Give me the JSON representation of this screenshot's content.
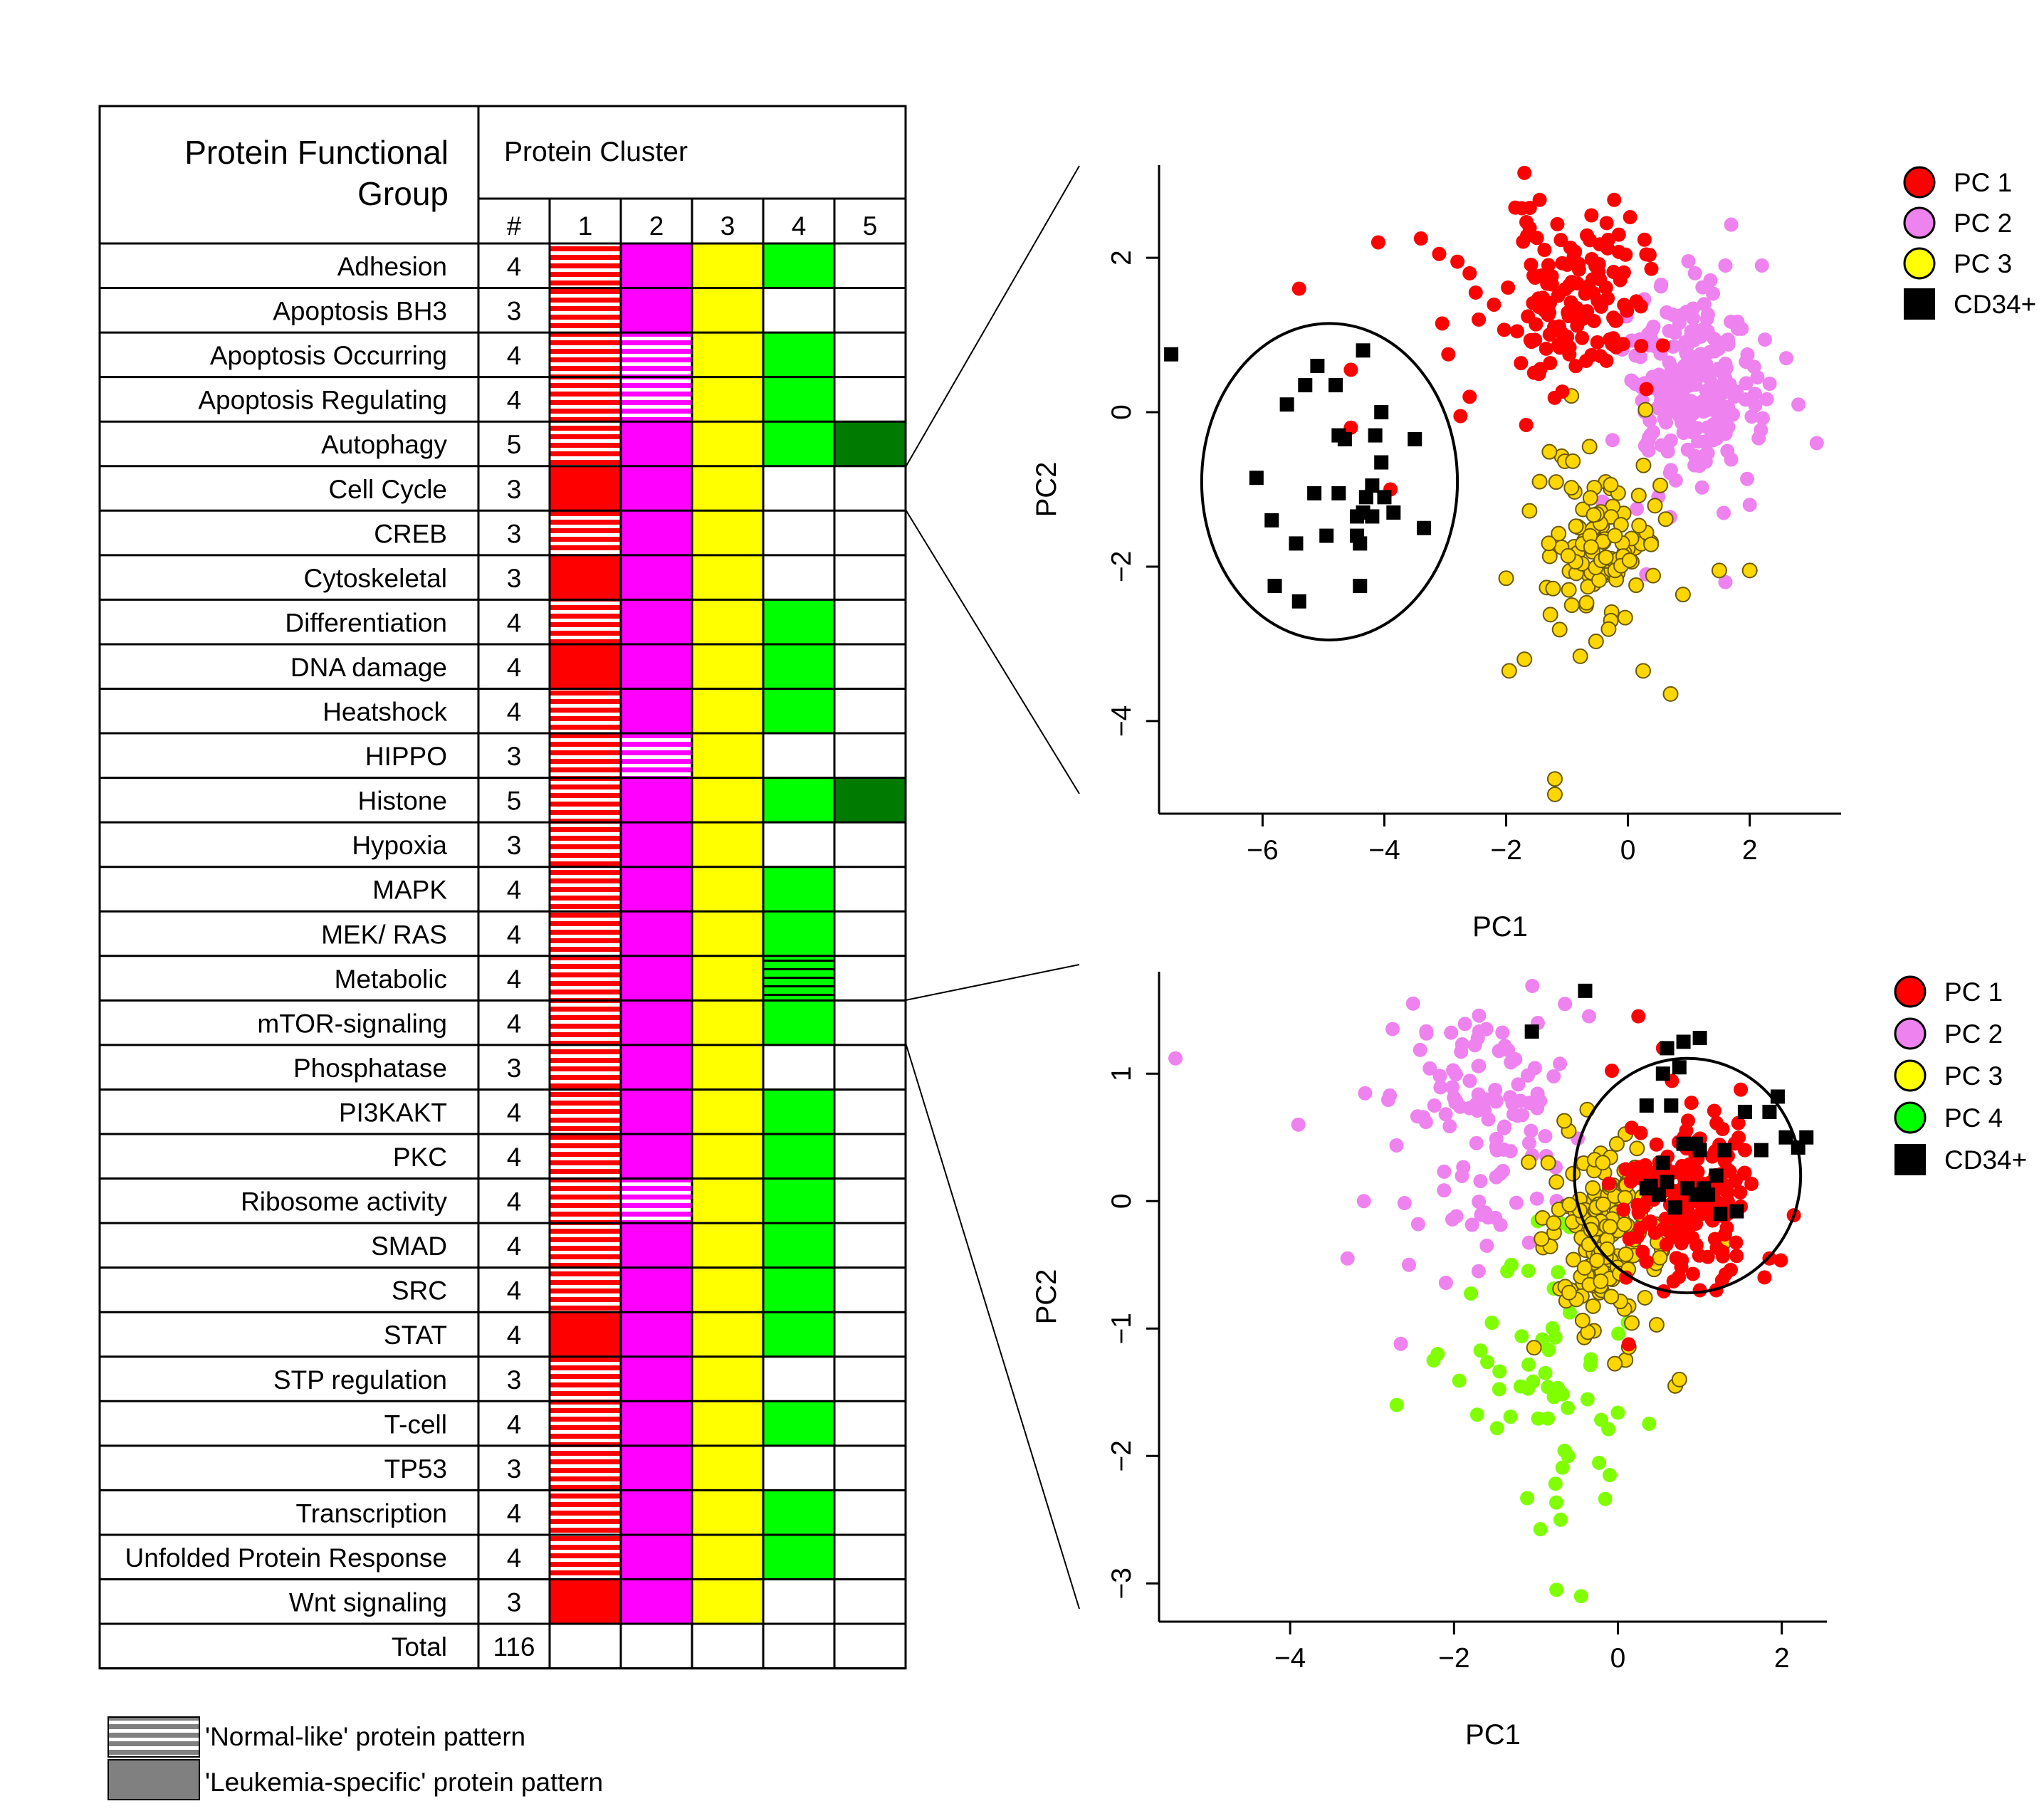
{
  "table": {
    "header_group": "Protein Functional Group",
    "header_group_line1": "Protein Functional",
    "header_group_line2": "Group",
    "header_cluster": "Protein Cluster",
    "col_count": "#",
    "col_clusters": [
      "1",
      "2",
      "3",
      "4",
      "5"
    ],
    "cluster_colors": [
      "#ff0000",
      "#ff00ff",
      "#ffff00",
      "#00ff00",
      "#007a00"
    ],
    "cell_code_legend": "0 = empty, 1 = solid leukemia-specific fill, 2 = 'normal-like' striped fill, 3 = dark-line hatch",
    "rows": [
      {
        "name": "Adhesion",
        "count": "4",
        "cells": [
          2,
          1,
          1,
          1,
          0
        ]
      },
      {
        "name": "Apoptosis BH3",
        "count": "3",
        "cells": [
          2,
          1,
          1,
          0,
          0
        ]
      },
      {
        "name": "Apoptosis Occurring",
        "count": "4",
        "cells": [
          2,
          2,
          1,
          1,
          0
        ]
      },
      {
        "name": "Apoptosis Regulating",
        "count": "4",
        "cells": [
          2,
          2,
          1,
          1,
          0
        ]
      },
      {
        "name": "Autophagy",
        "count": "5",
        "cells": [
          2,
          1,
          1,
          1,
          1
        ]
      },
      {
        "name": "Cell Cycle",
        "count": "3",
        "cells": [
          1,
          1,
          1,
          0,
          0
        ]
      },
      {
        "name": "CREB",
        "count": "3",
        "cells": [
          2,
          1,
          1,
          0,
          0
        ]
      },
      {
        "name": "Cytoskeletal",
        "count": "3",
        "cells": [
          1,
          1,
          1,
          0,
          0
        ]
      },
      {
        "name": "Differentiation",
        "count": "4",
        "cells": [
          2,
          1,
          1,
          1,
          0
        ]
      },
      {
        "name": "DNA damage",
        "count": "4",
        "cells": [
          1,
          1,
          1,
          1,
          0
        ]
      },
      {
        "name": "Heatshock",
        "count": "4",
        "cells": [
          2,
          1,
          1,
          1,
          0
        ]
      },
      {
        "name": "HIPPO",
        "count": "3",
        "cells": [
          2,
          2,
          1,
          0,
          0
        ]
      },
      {
        "name": "Histone",
        "count": "5",
        "cells": [
          2,
          1,
          1,
          1,
          1
        ]
      },
      {
        "name": "Hypoxia",
        "count": "3",
        "cells": [
          2,
          1,
          1,
          0,
          0
        ]
      },
      {
        "name": "MAPK",
        "count": "4",
        "cells": [
          2,
          1,
          1,
          1,
          0
        ]
      },
      {
        "name": "MEK/ RAS",
        "count": "4",
        "cells": [
          2,
          1,
          1,
          1,
          0
        ]
      },
      {
        "name": "Metabolic",
        "count": "4",
        "cells": [
          2,
          1,
          1,
          3,
          0
        ]
      },
      {
        "name": "mTOR-signaling",
        "count": "4",
        "cells": [
          2,
          1,
          1,
          1,
          0
        ]
      },
      {
        "name": "Phosphatase",
        "count": "3",
        "cells": [
          2,
          1,
          1,
          0,
          0
        ]
      },
      {
        "name": "PI3KAKT",
        "count": "4",
        "cells": [
          2,
          1,
          1,
          1,
          0
        ]
      },
      {
        "name": "PKC",
        "count": "4",
        "cells": [
          2,
          1,
          1,
          1,
          0
        ]
      },
      {
        "name": "Ribosome activity",
        "count": "4",
        "cells": [
          2,
          2,
          1,
          1,
          0
        ]
      },
      {
        "name": "SMAD",
        "count": "4",
        "cells": [
          2,
          1,
          1,
          1,
          0
        ]
      },
      {
        "name": "SRC",
        "count": "4",
        "cells": [
          2,
          1,
          1,
          1,
          0
        ]
      },
      {
        "name": "STAT",
        "count": "4",
        "cells": [
          1,
          1,
          1,
          1,
          0
        ]
      },
      {
        "name": "STP regulation",
        "count": "3",
        "cells": [
          2,
          1,
          1,
          0,
          0
        ]
      },
      {
        "name": "T-cell",
        "count": "4",
        "cells": [
          2,
          1,
          1,
          1,
          0
        ]
      },
      {
        "name": "TP53",
        "count": "3",
        "cells": [
          2,
          1,
          1,
          0,
          0
        ]
      },
      {
        "name": "Transcription",
        "count": "4",
        "cells": [
          2,
          1,
          1,
          1,
          0
        ]
      },
      {
        "name": "Unfolded Protein Response",
        "count": "4",
        "cells": [
          2,
          1,
          1,
          1,
          0
        ]
      },
      {
        "name": "Wnt signaling",
        "count": "3",
        "cells": [
          1,
          1,
          1,
          0,
          0
        ]
      }
    ],
    "total_label": "Total",
    "total_count": "116"
  },
  "pattern_legend": {
    "normal": "'Normal-like' protein pattern",
    "leukemia": "'Leukemia-specific' protein pattern"
  },
  "chart_data": [
    {
      "type": "scatter",
      "xlabel": "PC1",
      "ylabel": "PC2",
      "xlim": [
        -7.7,
        3.5
      ],
      "ylim": [
        -5.2,
        3.2
      ],
      "xticks": [
        -6,
        -4,
        -2,
        0,
        2
      ],
      "yticks": [
        -4,
        -2,
        0,
        2
      ],
      "grid": false,
      "legend_position": "top-right",
      "legend": [
        {
          "label": "PC 1",
          "color": "#ff0000",
          "marker": "circle"
        },
        {
          "label": "PC 2",
          "color": "#ee82ee",
          "marker": "circle"
        },
        {
          "label": "PC 3",
          "color": "#ffff00",
          "marker": "circle"
        },
        {
          "label": "CD34+",
          "color": "#000000",
          "marker": "square"
        }
      ],
      "ellipse": {
        "cx": -4.9,
        "cy": -0.9,
        "rx": 2.1,
        "ry": 2.05
      },
      "series": [
        {
          "name": "PC 1",
          "color": "#ff0000",
          "marker": "circle",
          "cloud": {
            "center": [
              -0.9,
              1.4
            ],
            "spread": [
              0.55,
              0.55
            ],
            "n": 130,
            "seed": 11
          },
          "points": [
            [
              -1.7,
              3.1
            ],
            [
              -1.45,
              2.75
            ],
            [
              -1.85,
              2.65
            ],
            [
              -0.6,
              2.55
            ],
            [
              -4.1,
              2.2
            ],
            [
              -3.4,
              2.25
            ],
            [
              -3.1,
              2.05
            ],
            [
              -2.8,
              1.95
            ],
            [
              -2.6,
              1.8
            ],
            [
              -2.5,
              1.55
            ],
            [
              -5.4,
              1.6
            ],
            [
              -3.05,
              1.15
            ],
            [
              -2.45,
              1.2
            ],
            [
              -2.95,
              0.75
            ],
            [
              -2.6,
              0.2
            ],
            [
              -2.75,
              -0.05
            ],
            [
              -4.55,
              0.55
            ],
            [
              -4.55,
              -0.2
            ],
            [
              -3.9,
              -1.0
            ],
            [
              -0.15,
              2.3
            ],
            [
              -0.35,
              2.45
            ]
          ]
        },
        {
          "name": "PC 2",
          "color": "#ee82ee",
          "marker": "circle",
          "cloud": {
            "center": [
              1.0,
              0.3
            ],
            "spread": [
              0.55,
              0.65
            ],
            "n": 220,
            "seed": 23
          },
          "points": [
            [
              3.1,
              -0.4
            ],
            [
              2.8,
              0.1
            ],
            [
              2.6,
              0.7
            ],
            [
              2.2,
              1.9
            ],
            [
              1.6,
              -2.2
            ],
            [
              0.3,
              -2.1
            ],
            [
              1.1,
              1.8
            ],
            [
              1.6,
              1.9
            ],
            [
              2.0,
              -1.2
            ]
          ]
        },
        {
          "name": "PC 3",
          "color": "#ffd700",
          "marker": "circle",
          "cloud": {
            "center": [
              -0.4,
              -1.65
            ],
            "spread": [
              0.45,
              0.6
            ],
            "n": 110,
            "seed": 37
          },
          "points": [
            [
              -2.0,
              -2.15
            ],
            [
              -1.7,
              -3.2
            ],
            [
              -1.95,
              -3.35
            ],
            [
              -1.2,
              -4.75
            ],
            [
              -1.2,
              -4.95
            ],
            [
              0.7,
              -3.65
            ],
            [
              0.25,
              -3.35
            ],
            [
              1.5,
              -2.05
            ],
            [
              2.0,
              -2.05
            ],
            [
              -1.45,
              -0.9
            ]
          ]
        },
        {
          "name": "CD34+",
          "color": "#000000",
          "marker": "square",
          "points": [
            [
              -7.5,
              0.75
            ],
            [
              -5.1,
              0.6
            ],
            [
              -5.3,
              0.35
            ],
            [
              -5.6,
              0.1
            ],
            [
              -4.8,
              0.35
            ],
            [
              -4.35,
              0.8
            ],
            [
              -4.05,
              0.0
            ],
            [
              -4.75,
              -0.3
            ],
            [
              -4.65,
              -0.35
            ],
            [
              -4.15,
              -0.3
            ],
            [
              -3.5,
              -0.35
            ],
            [
              -6.1,
              -0.85
            ],
            [
              -5.15,
              -1.05
            ],
            [
              -4.75,
              -1.05
            ],
            [
              -4.3,
              -1.1
            ],
            [
              -4.05,
              -0.65
            ],
            [
              -4.2,
              -0.95
            ],
            [
              -4.0,
              -1.1
            ],
            [
              -5.85,
              -1.4
            ],
            [
              -4.45,
              -1.35
            ],
            [
              -4.35,
              -1.3
            ],
            [
              -4.2,
              -1.35
            ],
            [
              -3.85,
              -1.3
            ],
            [
              -4.95,
              -1.6
            ],
            [
              -4.45,
              -1.6
            ],
            [
              -4.4,
              -1.7
            ],
            [
              -5.45,
              -1.7
            ],
            [
              -3.35,
              -1.5
            ],
            [
              -5.8,
              -2.25
            ],
            [
              -5.4,
              -2.45
            ],
            [
              -4.4,
              -2.25
            ]
          ]
        }
      ]
    },
    {
      "type": "scatter",
      "xlabel": "PC1",
      "ylabel": "PC2",
      "xlim": [
        -5.6,
        2.55
      ],
      "ylim": [
        -3.3,
        1.8
      ],
      "xticks": [
        -4,
        -2,
        0,
        2
      ],
      "yticks": [
        -3,
        -2,
        -1,
        0,
        1
      ],
      "grid": false,
      "legend_position": "top-right",
      "legend": [
        {
          "label": "PC 1",
          "color": "#ff0000",
          "marker": "circle"
        },
        {
          "label": "PC 2",
          "color": "#ee82ee",
          "marker": "circle"
        },
        {
          "label": "PC 3",
          "color": "#ffff00",
          "marker": "circle"
        },
        {
          "label": "PC 4",
          "color": "#00ff00",
          "marker": "circle"
        },
        {
          "label": "CD34+",
          "color": "#000000",
          "marker": "square"
        }
      ],
      "ellipse": {
        "cx": 0.85,
        "cy": 0.2,
        "rx": 1.38,
        "ry": 0.92
      },
      "series": [
        {
          "name": "PC 1",
          "color": "#ff0000",
          "marker": "circle",
          "cloud": {
            "center": [
              0.9,
              0.05
            ],
            "spread": [
              0.38,
              0.35
            ],
            "n": 180,
            "seed": 41
          },
          "points": [
            [
              0.25,
              1.45
            ],
            [
              0.55,
              1.2
            ],
            [
              1.55,
              0.4
            ],
            [
              1.85,
              -0.45
            ],
            [
              1.0,
              -0.7
            ],
            [
              1.2,
              -0.7
            ],
            [
              0.1,
              -0.6
            ]
          ]
        },
        {
          "name": "PC 2",
          "color": "#ee82ee",
          "marker": "circle",
          "cloud": {
            "center": [
              -1.6,
              0.65
            ],
            "spread": [
              0.55,
              0.45
            ],
            "n": 110,
            "seed": 53
          },
          "points": [
            [
              -5.4,
              1.12
            ],
            [
              -3.9,
              0.6
            ],
            [
              -3.3,
              -0.45
            ],
            [
              -3.1,
              0.0
            ],
            [
              -2.55,
              -0.5
            ],
            [
              -2.65,
              -1.12
            ],
            [
              -2.5,
              1.55
            ],
            [
              -2.75,
              1.35
            ],
            [
              -1.6,
              -0.35
            ],
            [
              -1.7,
              -0.55
            ]
          ]
        },
        {
          "name": "PC 3",
          "color": "#ffd700",
          "marker": "circle",
          "cloud": {
            "center": [
              -0.15,
              -0.25
            ],
            "spread": [
              0.35,
              0.38
            ],
            "n": 170,
            "seed": 67
          },
          "points": [
            [
              0.7,
              -1.45
            ],
            [
              0.75,
              -1.4
            ],
            [
              -0.6,
              0.55
            ],
            [
              -0.85,
              0.3
            ],
            [
              -0.75,
              0.15
            ]
          ]
        },
        {
          "name": "PC 4",
          "color": "#7fff00",
          "marker": "circle",
          "cloud": {
            "center": [
              -0.8,
              -1.45
            ],
            "spread": [
              0.45,
              0.5
            ],
            "n": 55,
            "seed": 79
          },
          "points": [
            [
              -2.7,
              -1.6
            ],
            [
              -2.25,
              -1.25
            ],
            [
              -2.2,
              -1.2
            ],
            [
              -0.75,
              -3.05
            ],
            [
              -0.45,
              -3.1
            ],
            [
              -0.7,
              -2.5
            ],
            [
              -0.1,
              -2.15
            ],
            [
              -1.35,
              -0.55
            ],
            [
              -1.3,
              -0.5
            ]
          ]
        },
        {
          "name": "CD34+",
          "color": "#000000",
          "marker": "square",
          "points": [
            [
              -0.4,
              1.65
            ],
            [
              -1.05,
              1.33
            ],
            [
              0.6,
              1.2
            ],
            [
              0.8,
              1.25
            ],
            [
              1.0,
              1.28
            ],
            [
              0.55,
              1.0
            ],
            [
              0.75,
              1.05
            ],
            [
              0.35,
              0.75
            ],
            [
              0.65,
              0.75
            ],
            [
              0.8,
              0.45
            ],
            [
              1.0,
              0.4
            ],
            [
              0.95,
              0.45
            ],
            [
              1.3,
              0.4
            ],
            [
              1.55,
              0.7
            ],
            [
              1.95,
              0.82
            ],
            [
              2.05,
              0.5
            ],
            [
              2.3,
              0.5
            ],
            [
              2.2,
              0.42
            ],
            [
              1.85,
              0.7
            ],
            [
              1.75,
              0.4
            ],
            [
              0.55,
              0.3
            ],
            [
              0.6,
              0.15
            ],
            [
              0.85,
              0.1
            ],
            [
              0.35,
              0.1
            ],
            [
              0.5,
              0.05
            ],
            [
              1.1,
              0.05
            ],
            [
              1.2,
              0.2
            ],
            [
              1.05,
              0.1
            ],
            [
              0.95,
              0.05
            ],
            [
              0.7,
              -0.05
            ],
            [
              0.4,
              0.12
            ],
            [
              1.25,
              -0.1
            ],
            [
              1.45,
              -0.08
            ]
          ]
        }
      ]
    }
  ]
}
